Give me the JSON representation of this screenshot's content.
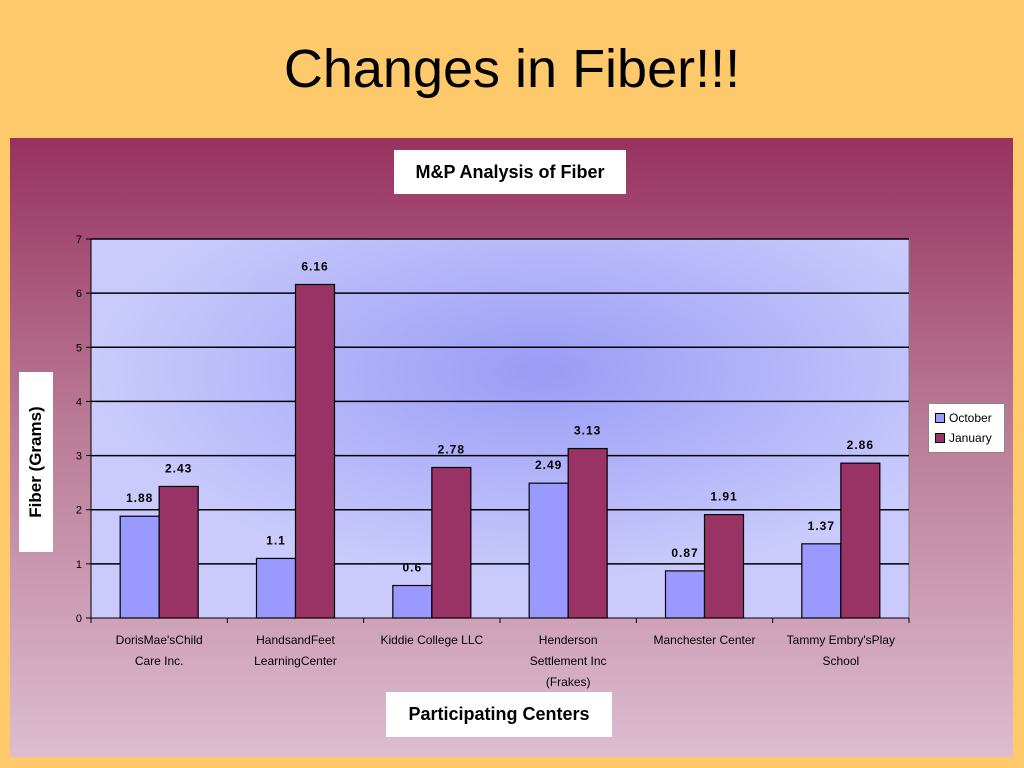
{
  "slide": {
    "title": "Changes in Fiber!!!"
  },
  "chart_data": {
    "type": "bar",
    "title": "M&P Analysis of Fiber",
    "xlabel": "Participating Centers",
    "ylabel": "Fiber (Grams)",
    "ylim": [
      0,
      7
    ],
    "yticks": [
      "0",
      "1",
      "2",
      "3",
      "4",
      "5",
      "6",
      "7"
    ],
    "grid": true,
    "legend_position": "right",
    "categories": [
      [
        "DorisMae'sChild",
        "Care Inc."
      ],
      [
        "HandsandFeet",
        "LearningCenter"
      ],
      [
        "Kiddie College LLC"
      ],
      [
        "Henderson",
        "Settlement Inc",
        "(Frakes)"
      ],
      [
        "Manchester Center"
      ],
      [
        "Tammy Embry'sPlay",
        "School"
      ]
    ],
    "series": [
      {
        "name": "October",
        "color": "#9999ff",
        "values": [
          1.88,
          1.1,
          0.6,
          2.49,
          0.87,
          1.37
        ],
        "labels": [
          "1.88",
          "1.1",
          "0.6",
          "2.49",
          "0.87",
          "1.37"
        ]
      },
      {
        "name": "January",
        "color": "#993366",
        "values": [
          2.43,
          6.16,
          2.78,
          3.13,
          1.91,
          2.86
        ],
        "labels": [
          "2.43",
          "6.16",
          "2.78",
          "3.13",
          "1.91",
          "2.86"
        ]
      }
    ]
  }
}
